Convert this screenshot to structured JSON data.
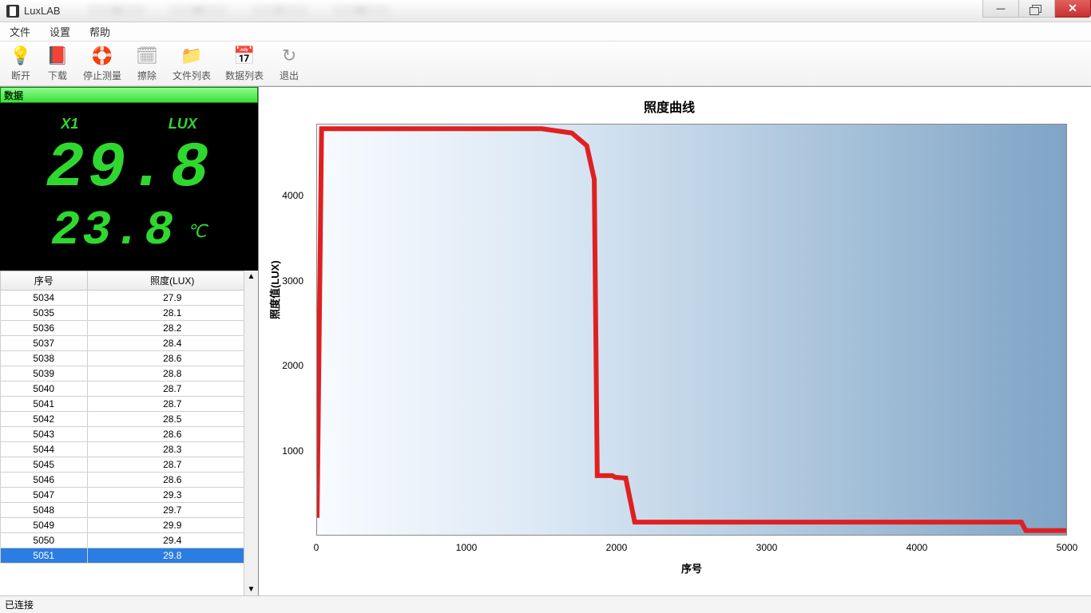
{
  "window": {
    "title": "LuxLAB"
  },
  "menu": {
    "file": "文件",
    "settings": "设置",
    "help": "帮助"
  },
  "toolbar": {
    "disconnect": "断开",
    "download": "下载",
    "stop": "停止测量",
    "clear": "擦除",
    "filelist": "文件列表",
    "datalist": "数据列表",
    "exit": "退出"
  },
  "left": {
    "header": "数据",
    "label_x1": "X1",
    "label_lux": "LUX",
    "value": "29.8",
    "temp": "23.8",
    "temp_unit": "℃",
    "col_seq": "序号",
    "col_lux": "照度(LUX)",
    "rows": [
      {
        "seq": "5034",
        "lux": "27.9"
      },
      {
        "seq": "5035",
        "lux": "28.1"
      },
      {
        "seq": "5036",
        "lux": "28.2"
      },
      {
        "seq": "5037",
        "lux": "28.4"
      },
      {
        "seq": "5038",
        "lux": "28.6"
      },
      {
        "seq": "5039",
        "lux": "28.8"
      },
      {
        "seq": "5040",
        "lux": "28.7"
      },
      {
        "seq": "5041",
        "lux": "28.7"
      },
      {
        "seq": "5042",
        "lux": "28.5"
      },
      {
        "seq": "5043",
        "lux": "28.6"
      },
      {
        "seq": "5044",
        "lux": "28.3"
      },
      {
        "seq": "5045",
        "lux": "28.7"
      },
      {
        "seq": "5046",
        "lux": "28.6"
      },
      {
        "seq": "5047",
        "lux": "29.3"
      },
      {
        "seq": "5048",
        "lux": "29.7"
      },
      {
        "seq": "5049",
        "lux": "29.9"
      },
      {
        "seq": "5050",
        "lux": "29.4"
      },
      {
        "seq": "5051",
        "lux": "29.8"
      }
    ],
    "selected_seq": "5051"
  },
  "chart": {
    "title": "照度曲线",
    "y_label": "照度值(LUX)",
    "x_label": "序号",
    "type": "line",
    "xlim": [
      0,
      5000
    ],
    "ylim": [
      0,
      4850
    ],
    "x_ticks": [
      0,
      1000,
      2000,
      3000,
      4000,
      5000
    ],
    "y_ticks": [
      1000,
      2000,
      3000,
      4000
    ],
    "line_color": "#e02020",
    "line_width": 2,
    "background_gradient": [
      "#f8fbff",
      "#7fa4c6"
    ],
    "border_color": "#888888",
    "series": [
      {
        "x": 0,
        "y": 200
      },
      {
        "x": 30,
        "y": 4800
      },
      {
        "x": 1500,
        "y": 4800
      },
      {
        "x": 1700,
        "y": 4750
      },
      {
        "x": 1800,
        "y": 4600
      },
      {
        "x": 1850,
        "y": 4200
      },
      {
        "x": 1870,
        "y": 700
      },
      {
        "x": 1970,
        "y": 700
      },
      {
        "x": 1990,
        "y": 680
      },
      {
        "x": 2060,
        "y": 670
      },
      {
        "x": 2120,
        "y": 150
      },
      {
        "x": 4700,
        "y": 150
      },
      {
        "x": 4730,
        "y": 50
      },
      {
        "x": 5050,
        "y": 50
      }
    ]
  },
  "status": {
    "text": "已连接"
  }
}
